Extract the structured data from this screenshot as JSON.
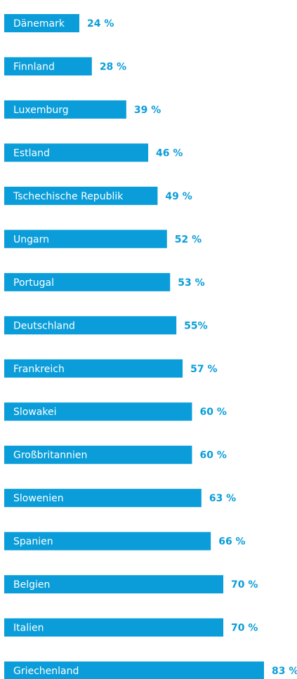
{
  "chart_data": {
    "type": "barh",
    "categories": [
      "Dänemark",
      "Finnland",
      "Luxemburg",
      "Estland",
      "Tschechische Republik",
      "Ungarn",
      "Portugal",
      "Deutschland",
      "Frankreich",
      "Slowakei",
      "Großbritannien",
      "Slowenien",
      "Spanien",
      "Belgien",
      "Italien",
      "Griechenland"
    ],
    "values": [
      24,
      28,
      39,
      46,
      49,
      52,
      53,
      55,
      57,
      60,
      60,
      63,
      66,
      70,
      70,
      83
    ],
    "value_labels": [
      "24 %",
      "28 %",
      "39 %",
      "46 %",
      "49 %",
      "52 %",
      "53 %",
      "55%",
      "57 %",
      "60 %",
      "60 %",
      "63 %",
      "66 %",
      "70 %",
      "70 %",
      "83 %"
    ],
    "color": "#0a9dd9"
  }
}
